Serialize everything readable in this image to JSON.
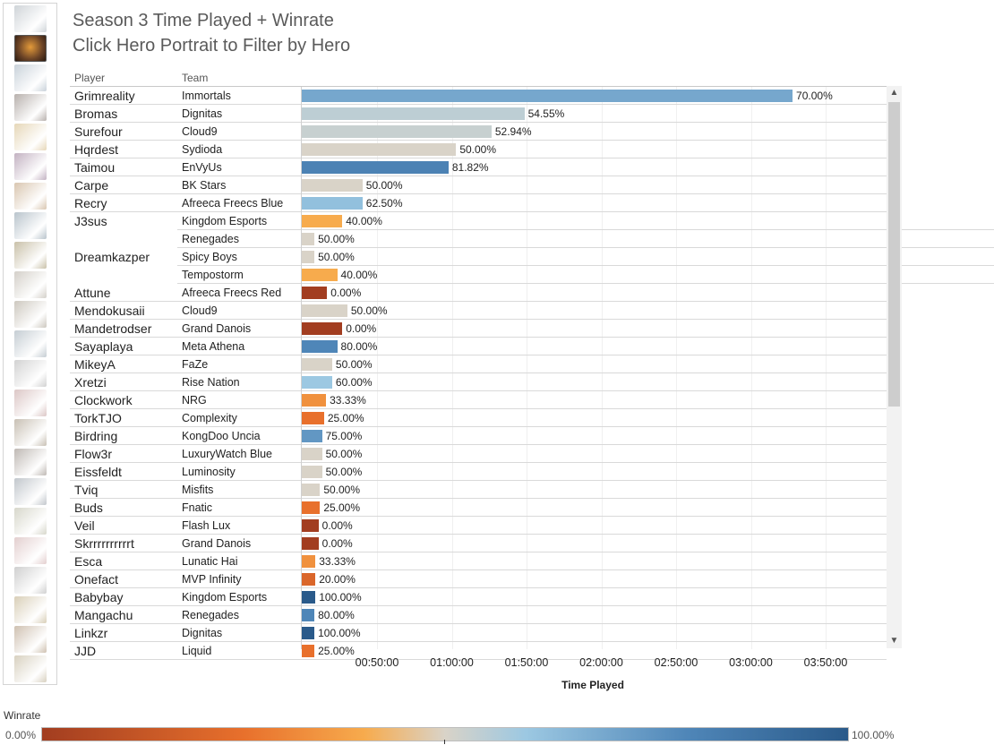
{
  "title": "Season 3 Time Played + Winrate",
  "subtitle": "Click Hero Portrait to Filter by Hero",
  "columns": {
    "player": "Player",
    "team": "Team"
  },
  "colors": {
    "winrate_low": "#a23d20",
    "winrate_mid_orange": "#f7ab4d",
    "winrate_mid": "#d9d3c8",
    "winrate_mid_blue": "#9cc8e2",
    "winrate_high": "#2a5a8a"
  },
  "heroes": [
    {
      "icon": "hero-icon-1",
      "color": "#cfd4d8"
    },
    {
      "icon": "hero-icon-2-selected",
      "color": "#6b4326"
    },
    {
      "icon": "hero-icon-3",
      "color": "#c9d2da"
    },
    {
      "icon": "hero-icon-4",
      "color": "#b8b1ad"
    },
    {
      "icon": "hero-icon-5",
      "color": "#e6d7b8"
    },
    {
      "icon": "hero-icon-6",
      "color": "#c3b2c2"
    },
    {
      "icon": "hero-icon-7",
      "color": "#d9c6b0"
    },
    {
      "icon": "hero-icon-8",
      "color": "#b9c4cc"
    },
    {
      "icon": "hero-icon-9",
      "color": "#c9c1a9"
    },
    {
      "icon": "hero-icon-10",
      "color": "#d4d0c9"
    },
    {
      "icon": "hero-icon-11",
      "color": "#cdc8bf"
    },
    {
      "icon": "hero-icon-12",
      "color": "#c5cdd3"
    },
    {
      "icon": "hero-icon-13",
      "color": "#d2d2d2"
    },
    {
      "icon": "hero-icon-14",
      "color": "#dcc7c6"
    },
    {
      "icon": "hero-icon-15",
      "color": "#c8c0b4"
    },
    {
      "icon": "hero-icon-16",
      "color": "#bfb9b4"
    },
    {
      "icon": "hero-icon-17",
      "color": "#c2c7cc"
    },
    {
      "icon": "hero-icon-18",
      "color": "#d7d7cb"
    },
    {
      "icon": "hero-icon-19",
      "color": "#e3cfcf"
    },
    {
      "icon": "hero-icon-20",
      "color": "#d0d0d0"
    },
    {
      "icon": "hero-icon-21",
      "color": "#d9cfb8"
    },
    {
      "icon": "hero-icon-22",
      "color": "#cfc1b1"
    },
    {
      "icon": "hero-icon-23",
      "color": "#d8d1c0"
    }
  ],
  "chart_data": {
    "type": "bar",
    "orientation": "horizontal",
    "value_axis": {
      "title": "Time Played",
      "ticks": [
        "00:50:00",
        "01:00:00",
        "01:50:00",
        "02:00:00",
        "02:50:00",
        "03:00:00",
        "03:50:00"
      ]
    },
    "rows": [
      {
        "player": "Grimreality",
        "team": "Immortals",
        "time_fraction": 0.97,
        "winrate": 70.0,
        "label": "70.00%"
      },
      {
        "player": "Bromas",
        "team": "Dignitas",
        "time_fraction": 0.44,
        "winrate": 54.55,
        "label": "54.55%"
      },
      {
        "player": "Surefour",
        "team": "Cloud9",
        "time_fraction": 0.375,
        "winrate": 52.94,
        "label": "52.94%"
      },
      {
        "player": "Hqrdest",
        "team": "Sydioda",
        "time_fraction": 0.305,
        "winrate": 50.0,
        "label": "50.00%"
      },
      {
        "player": "Taimou",
        "team": "EnVyUs",
        "time_fraction": 0.29,
        "winrate": 81.82,
        "label": "81.82%"
      },
      {
        "player": "Carpe",
        "team": "BK Stars",
        "time_fraction": 0.12,
        "winrate": 50.0,
        "label": "50.00%"
      },
      {
        "player": "Recry",
        "team": "Afreeca Freecs Blue",
        "time_fraction": 0.12,
        "winrate": 62.5,
        "label": "62.50%"
      },
      {
        "player": "J3sus",
        "team": "Kingdom Esports",
        "time_fraction": 0.08,
        "winrate": 40.0,
        "label": "40.00%"
      },
      {
        "player": "",
        "team": "Renegades",
        "time_fraction": 0.025,
        "winrate": 50.0,
        "label": "50.00%"
      },
      {
        "player": "Dreamkazper",
        "team": "Spicy Boys",
        "time_fraction": 0.025,
        "winrate": 50.0,
        "label": "50.00%"
      },
      {
        "player": "",
        "team": "Tempostorm",
        "time_fraction": 0.07,
        "winrate": 40.0,
        "label": "40.00%"
      },
      {
        "player": "Attune",
        "team": "Afreeca Freecs Red",
        "time_fraction": 0.05,
        "winrate": 0.0,
        "label": "0.00%"
      },
      {
        "player": "Mendokusaii",
        "team": "Cloud9",
        "time_fraction": 0.09,
        "winrate": 50.0,
        "label": "50.00%"
      },
      {
        "player": "Mandetrodser",
        "team": "Grand Danois",
        "time_fraction": 0.08,
        "winrate": 0.0,
        "label": "0.00%"
      },
      {
        "player": "Sayaplaya",
        "team": "Meta Athena",
        "time_fraction": 0.07,
        "winrate": 80.0,
        "label": "80.00%"
      },
      {
        "player": "MikeyA",
        "team": "FaZe",
        "time_fraction": 0.06,
        "winrate": 50.0,
        "label": "50.00%"
      },
      {
        "player": "Xretzi",
        "team": "Rise Nation",
        "time_fraction": 0.06,
        "winrate": 60.0,
        "label": "60.00%"
      },
      {
        "player": "Clockwork",
        "team": "NRG",
        "time_fraction": 0.048,
        "winrate": 33.33,
        "label": "33.33%"
      },
      {
        "player": "TorkTJO",
        "team": "Complexity",
        "time_fraction": 0.044,
        "winrate": 25.0,
        "label": "25.00%"
      },
      {
        "player": "Birdring",
        "team": "KongDoo Uncia",
        "time_fraction": 0.04,
        "winrate": 75.0,
        "label": "75.00%"
      },
      {
        "player": "Flow3r",
        "team": "LuxuryWatch Blue",
        "time_fraction": 0.04,
        "winrate": 50.0,
        "label": "50.00%"
      },
      {
        "player": "Eissfeldt",
        "team": "Luminosity",
        "time_fraction": 0.04,
        "winrate": 50.0,
        "label": "50.00%"
      },
      {
        "player": "Tviq",
        "team": "Misfits",
        "time_fraction": 0.036,
        "winrate": 50.0,
        "label": "50.00%"
      },
      {
        "player": "Buds",
        "team": "Fnatic",
        "time_fraction": 0.036,
        "winrate": 25.0,
        "label": "25.00%"
      },
      {
        "player": "Veil",
        "team": "Flash Lux",
        "time_fraction": 0.033,
        "winrate": 0.0,
        "label": "0.00%"
      },
      {
        "player": "Skrrrrrrrrrrt",
        "team": "Grand Danois",
        "time_fraction": 0.033,
        "winrate": 0.0,
        "label": "0.00%"
      },
      {
        "player": "Esca",
        "team": "Lunatic Hai",
        "time_fraction": 0.027,
        "winrate": 33.33,
        "label": "33.33%"
      },
      {
        "player": "Onefact",
        "team": "MVP Infinity",
        "time_fraction": 0.027,
        "winrate": 20.0,
        "label": "20.00%"
      },
      {
        "player": "Babybay",
        "team": "Kingdom Esports",
        "time_fraction": 0.027,
        "winrate": 100.0,
        "label": "100.00%"
      },
      {
        "player": "Mangachu",
        "team": "Renegades",
        "time_fraction": 0.025,
        "winrate": 80.0,
        "label": "80.00%"
      },
      {
        "player": "Linkzr",
        "team": "Dignitas",
        "time_fraction": 0.025,
        "winrate": 100.0,
        "label": "100.00%"
      },
      {
        "player": "JJD",
        "team": "Liquid",
        "time_fraction": 0.025,
        "winrate": 25.0,
        "label": "25.00%"
      }
    ],
    "color_legend": {
      "title": "Winrate",
      "min_label": "0.00%",
      "max_label": "100.00%"
    }
  }
}
